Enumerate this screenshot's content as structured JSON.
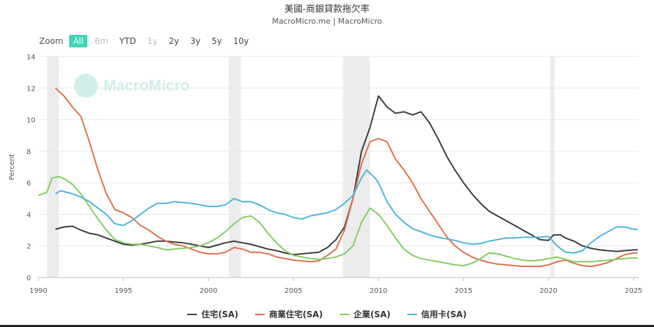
{
  "title": "美國-商銀貸款拖欠率",
  "subtitle": "MacroMicro.me | MacroMicro",
  "watermark": "MacroMicro",
  "zoom": {
    "label": "Zoom",
    "buttons": [
      "All",
      "6m",
      "YTD",
      "1y",
      "2y",
      "3y",
      "5y",
      "10y"
    ],
    "active": "All",
    "disabled": [
      "6m",
      "1y"
    ]
  },
  "colors": {
    "residential": "#3a3a3a",
    "commercial_re": "#e06e4a",
    "business": "#7fcf5f",
    "credit_card": "#4cb5d8",
    "recession": "#ececec",
    "grid": "#e6e6e6"
  },
  "chart_data": {
    "type": "line",
    "title": "美國-商銀貸款拖欠率",
    "ylabel": "Percent",
    "xlabel": "",
    "xlim": [
      1990,
      2025.3
    ],
    "ylim": [
      0,
      14
    ],
    "yticks": [
      0,
      2,
      4,
      6,
      8,
      10,
      12,
      14
    ],
    "xticks": [
      1990,
      1995,
      2000,
      2005,
      2010,
      2015,
      2020,
      2025
    ],
    "grid": true,
    "legend_position": "bottom",
    "recessions": [
      [
        1990.5,
        1991.2
      ],
      [
        2001.2,
        2001.9
      ],
      [
        2007.9,
        2009.5
      ],
      [
        2020.1,
        2020.35
      ]
    ],
    "series": [
      {
        "name": "住宅(SA)",
        "color": "#3a3a3a",
        "points": [
          [
            1991.0,
            3.05
          ],
          [
            1991.5,
            3.2
          ],
          [
            1992.0,
            3.25
          ],
          [
            1992.5,
            3.0
          ],
          [
            1993.0,
            2.8
          ],
          [
            1993.5,
            2.7
          ],
          [
            1994.0,
            2.5
          ],
          [
            1994.5,
            2.3
          ],
          [
            1995.0,
            2.1
          ],
          [
            1995.5,
            2.05
          ],
          [
            1996.0,
            2.1
          ],
          [
            1996.5,
            2.2
          ],
          [
            1997.0,
            2.3
          ],
          [
            1997.5,
            2.3
          ],
          [
            1998.0,
            2.25
          ],
          [
            1998.5,
            2.2
          ],
          [
            1999.0,
            2.1
          ],
          [
            1999.5,
            2.0
          ],
          [
            2000.0,
            1.9
          ],
          [
            2000.5,
            2.05
          ],
          [
            2001.0,
            2.2
          ],
          [
            2001.5,
            2.3
          ],
          [
            2002.0,
            2.2
          ],
          [
            2002.5,
            2.1
          ],
          [
            2003.0,
            1.95
          ],
          [
            2003.5,
            1.8
          ],
          [
            2004.0,
            1.7
          ],
          [
            2004.5,
            1.55
          ],
          [
            2005.0,
            1.45
          ],
          [
            2005.5,
            1.5
          ],
          [
            2006.0,
            1.55
          ],
          [
            2006.5,
            1.6
          ],
          [
            2007.0,
            1.9
          ],
          [
            2007.5,
            2.4
          ],
          [
            2008.0,
            3.2
          ],
          [
            2008.5,
            5.0
          ],
          [
            2009.0,
            8.0
          ],
          [
            2009.5,
            9.5
          ],
          [
            2010.0,
            11.5
          ],
          [
            2010.5,
            10.8
          ],
          [
            2011.0,
            10.4
          ],
          [
            2011.5,
            10.5
          ],
          [
            2012.0,
            10.3
          ],
          [
            2012.5,
            10.5
          ],
          [
            2013.0,
            9.8
          ],
          [
            2013.5,
            8.8
          ],
          [
            2014.0,
            7.7
          ],
          [
            2014.5,
            6.8
          ],
          [
            2015.0,
            6.0
          ],
          [
            2015.5,
            5.3
          ],
          [
            2016.0,
            4.7
          ],
          [
            2016.5,
            4.2
          ],
          [
            2017.0,
            3.9
          ],
          [
            2017.5,
            3.6
          ],
          [
            2018.0,
            3.3
          ],
          [
            2018.5,
            3.0
          ],
          [
            2019.0,
            2.7
          ],
          [
            2019.5,
            2.4
          ],
          [
            2020.0,
            2.35
          ],
          [
            2020.3,
            2.7
          ],
          [
            2020.7,
            2.7
          ],
          [
            2021.0,
            2.5
          ],
          [
            2021.5,
            2.3
          ],
          [
            2022.0,
            2.0
          ],
          [
            2022.5,
            1.85
          ],
          [
            2023.0,
            1.75
          ],
          [
            2023.5,
            1.7
          ],
          [
            2024.0,
            1.65
          ],
          [
            2024.5,
            1.7
          ],
          [
            2025.0,
            1.75
          ],
          [
            2025.25,
            1.75
          ]
        ]
      },
      {
        "name": "商業住宅(SA)",
        "color": "#e06e4a",
        "points": [
          [
            1991.0,
            12.0
          ],
          [
            1991.5,
            11.5
          ],
          [
            1992.0,
            10.8
          ],
          [
            1992.5,
            10.2
          ],
          [
            1993.0,
            8.6
          ],
          [
            1993.5,
            6.8
          ],
          [
            1994.0,
            5.3
          ],
          [
            1994.5,
            4.3
          ],
          [
            1995.0,
            4.1
          ],
          [
            1995.5,
            3.8
          ],
          [
            1996.0,
            3.3
          ],
          [
            1996.5,
            3.0
          ],
          [
            1997.0,
            2.6
          ],
          [
            1997.5,
            2.3
          ],
          [
            1998.0,
            2.1
          ],
          [
            1998.5,
            2.0
          ],
          [
            1999.0,
            1.8
          ],
          [
            1999.5,
            1.6
          ],
          [
            2000.0,
            1.5
          ],
          [
            2000.5,
            1.5
          ],
          [
            2001.0,
            1.6
          ],
          [
            2001.5,
            1.9
          ],
          [
            2002.0,
            1.8
          ],
          [
            2002.5,
            1.6
          ],
          [
            2003.0,
            1.6
          ],
          [
            2003.5,
            1.5
          ],
          [
            2004.0,
            1.3
          ],
          [
            2004.5,
            1.2
          ],
          [
            2005.0,
            1.1
          ],
          [
            2005.5,
            1.05
          ],
          [
            2006.0,
            1.0
          ],
          [
            2006.5,
            1.05
          ],
          [
            2007.0,
            1.4
          ],
          [
            2007.5,
            1.8
          ],
          [
            2008.0,
            3.0
          ],
          [
            2008.5,
            5.0
          ],
          [
            2009.0,
            7.2
          ],
          [
            2009.5,
            8.6
          ],
          [
            2010.0,
            8.8
          ],
          [
            2010.5,
            8.6
          ],
          [
            2011.0,
            7.5
          ],
          [
            2011.5,
            6.8
          ],
          [
            2012.0,
            6.0
          ],
          [
            2012.5,
            5.0
          ],
          [
            2013.0,
            4.2
          ],
          [
            2013.5,
            3.4
          ],
          [
            2014.0,
            2.6
          ],
          [
            2014.5,
            2.0
          ],
          [
            2015.0,
            1.6
          ],
          [
            2015.5,
            1.3
          ],
          [
            2016.0,
            1.1
          ],
          [
            2016.5,
            0.95
          ],
          [
            2017.0,
            0.85
          ],
          [
            2017.5,
            0.8
          ],
          [
            2018.0,
            0.75
          ],
          [
            2018.5,
            0.7
          ],
          [
            2019.0,
            0.7
          ],
          [
            2019.5,
            0.7
          ],
          [
            2020.0,
            0.8
          ],
          [
            2020.5,
            1.0
          ],
          [
            2021.0,
            1.1
          ],
          [
            2021.5,
            0.9
          ],
          [
            2022.0,
            0.75
          ],
          [
            2022.5,
            0.7
          ],
          [
            2023.0,
            0.8
          ],
          [
            2023.5,
            0.95
          ],
          [
            2024.0,
            1.2
          ],
          [
            2024.5,
            1.45
          ],
          [
            2025.0,
            1.55
          ],
          [
            2025.25,
            1.55
          ]
        ]
      },
      {
        "name": "企業(SA)",
        "color": "#7fcf5f",
        "points": [
          [
            1990.0,
            5.2
          ],
          [
            1990.5,
            5.4
          ],
          [
            1990.8,
            6.3
          ],
          [
            1991.2,
            6.4
          ],
          [
            1991.6,
            6.2
          ],
          [
            1992.0,
            5.9
          ],
          [
            1992.5,
            5.3
          ],
          [
            1993.0,
            4.5
          ],
          [
            1993.5,
            3.7
          ],
          [
            1994.0,
            3.0
          ],
          [
            1994.5,
            2.4
          ],
          [
            1995.0,
            2.2
          ],
          [
            1995.5,
            2.1
          ],
          [
            1996.0,
            2.1
          ],
          [
            1996.5,
            2.0
          ],
          [
            1997.0,
            1.9
          ],
          [
            1997.5,
            1.75
          ],
          [
            1998.0,
            1.8
          ],
          [
            1998.5,
            1.85
          ],
          [
            1999.0,
            1.9
          ],
          [
            1999.5,
            2.0
          ],
          [
            2000.0,
            2.2
          ],
          [
            2000.5,
            2.5
          ],
          [
            2001.0,
            2.9
          ],
          [
            2001.5,
            3.4
          ],
          [
            2002.0,
            3.8
          ],
          [
            2002.5,
            3.9
          ],
          [
            2003.0,
            3.5
          ],
          [
            2003.5,
            2.8
          ],
          [
            2004.0,
            2.2
          ],
          [
            2004.5,
            1.7
          ],
          [
            2005.0,
            1.4
          ],
          [
            2005.5,
            1.3
          ],
          [
            2006.0,
            1.2
          ],
          [
            2006.5,
            1.15
          ],
          [
            2007.0,
            1.2
          ],
          [
            2007.5,
            1.3
          ],
          [
            2008.0,
            1.5
          ],
          [
            2008.5,
            2.0
          ],
          [
            2009.0,
            3.5
          ],
          [
            2009.5,
            4.4
          ],
          [
            2010.0,
            4.0
          ],
          [
            2010.5,
            3.3
          ],
          [
            2011.0,
            2.5
          ],
          [
            2011.5,
            1.8
          ],
          [
            2012.0,
            1.4
          ],
          [
            2012.5,
            1.2
          ],
          [
            2013.0,
            1.1
          ],
          [
            2013.5,
            1.0
          ],
          [
            2014.0,
            0.9
          ],
          [
            2014.5,
            0.8
          ],
          [
            2015.0,
            0.75
          ],
          [
            2015.5,
            0.9
          ],
          [
            2016.0,
            1.2
          ],
          [
            2016.5,
            1.55
          ],
          [
            2017.0,
            1.5
          ],
          [
            2017.5,
            1.35
          ],
          [
            2018.0,
            1.2
          ],
          [
            2018.5,
            1.1
          ],
          [
            2019.0,
            1.05
          ],
          [
            2019.5,
            1.1
          ],
          [
            2020.0,
            1.2
          ],
          [
            2020.5,
            1.3
          ],
          [
            2021.0,
            1.15
          ],
          [
            2021.5,
            1.0
          ],
          [
            2022.0,
            1.0
          ],
          [
            2022.5,
            1.0
          ],
          [
            2023.0,
            1.05
          ],
          [
            2023.5,
            1.1
          ],
          [
            2024.0,
            1.15
          ],
          [
            2024.5,
            1.2
          ],
          [
            2025.0,
            1.25
          ],
          [
            2025.25,
            1.25
          ]
        ]
      },
      {
        "name": "信用卡(SA)",
        "color": "#4cb5d8",
        "points": [
          [
            1991.0,
            5.3
          ],
          [
            1991.3,
            5.5
          ],
          [
            1992.0,
            5.3
          ],
          [
            1992.5,
            5.1
          ],
          [
            1993.0,
            4.8
          ],
          [
            1993.5,
            4.4
          ],
          [
            1994.0,
            4.0
          ],
          [
            1994.5,
            3.4
          ],
          [
            1995.0,
            3.3
          ],
          [
            1995.5,
            3.6
          ],
          [
            1996.0,
            4.0
          ],
          [
            1996.5,
            4.4
          ],
          [
            1997.0,
            4.7
          ],
          [
            1997.5,
            4.7
          ],
          [
            1998.0,
            4.8
          ],
          [
            1998.5,
            4.75
          ],
          [
            1999.0,
            4.7
          ],
          [
            1999.5,
            4.6
          ],
          [
            2000.0,
            4.5
          ],
          [
            2000.5,
            4.5
          ],
          [
            2001.0,
            4.6
          ],
          [
            2001.5,
            5.0
          ],
          [
            2002.0,
            4.8
          ],
          [
            2002.5,
            4.8
          ],
          [
            2003.0,
            4.6
          ],
          [
            2003.5,
            4.3
          ],
          [
            2004.0,
            4.1
          ],
          [
            2004.5,
            4.0
          ],
          [
            2005.0,
            3.8
          ],
          [
            2005.5,
            3.7
          ],
          [
            2006.0,
            3.9
          ],
          [
            2006.5,
            4.0
          ],
          [
            2007.0,
            4.1
          ],
          [
            2007.5,
            4.3
          ],
          [
            2008.0,
            4.7
          ],
          [
            2008.5,
            5.2
          ],
          [
            2009.0,
            6.3
          ],
          [
            2009.3,
            6.8
          ],
          [
            2009.8,
            6.3
          ],
          [
            2010.0,
            6.0
          ],
          [
            2010.5,
            4.8
          ],
          [
            2011.0,
            4.0
          ],
          [
            2011.5,
            3.5
          ],
          [
            2012.0,
            3.1
          ],
          [
            2012.5,
            2.9
          ],
          [
            2013.0,
            2.7
          ],
          [
            2013.5,
            2.55
          ],
          [
            2014.0,
            2.45
          ],
          [
            2014.5,
            2.35
          ],
          [
            2015.0,
            2.2
          ],
          [
            2015.5,
            2.1
          ],
          [
            2016.0,
            2.15
          ],
          [
            2016.5,
            2.3
          ],
          [
            2017.0,
            2.4
          ],
          [
            2017.5,
            2.5
          ],
          [
            2018.0,
            2.5
          ],
          [
            2018.5,
            2.55
          ],
          [
            2019.0,
            2.55
          ],
          [
            2019.5,
            2.55
          ],
          [
            2020.0,
            2.6
          ],
          [
            2020.5,
            2.0
          ],
          [
            2021.0,
            1.6
          ],
          [
            2021.5,
            1.55
          ],
          [
            2022.0,
            1.7
          ],
          [
            2022.5,
            2.2
          ],
          [
            2023.0,
            2.6
          ],
          [
            2023.5,
            2.9
          ],
          [
            2024.0,
            3.2
          ],
          [
            2024.5,
            3.2
          ],
          [
            2025.0,
            3.05
          ],
          [
            2025.25,
            3.05
          ]
        ]
      }
    ]
  }
}
